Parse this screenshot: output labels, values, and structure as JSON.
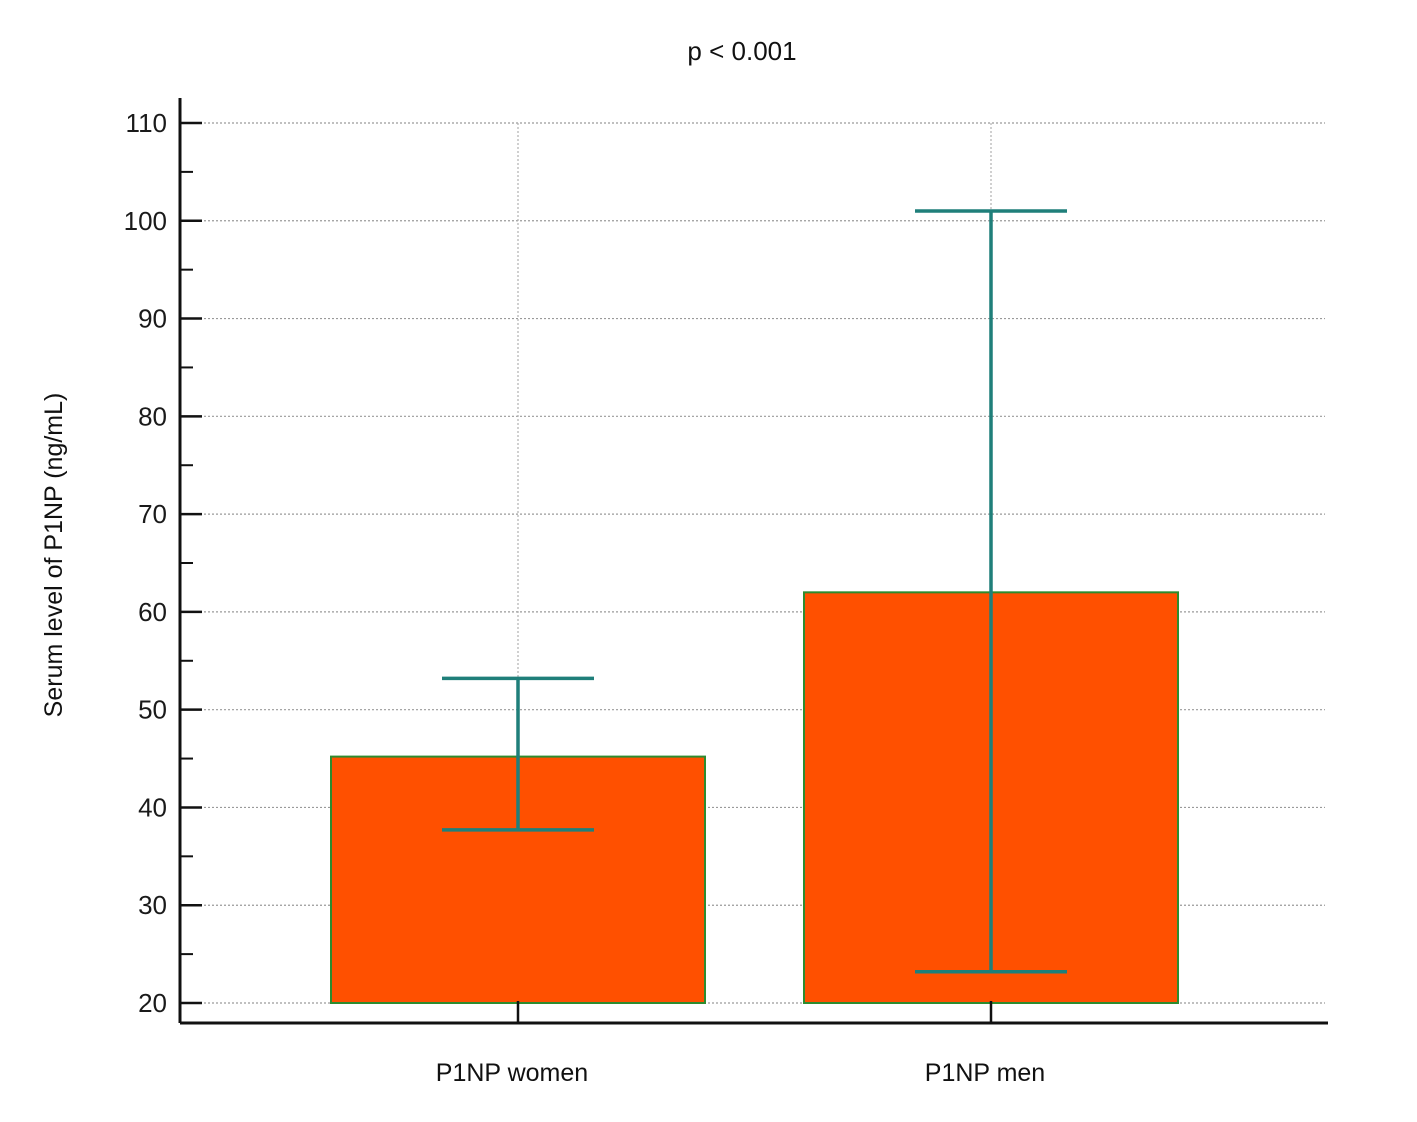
{
  "chart_data": {
    "type": "bar",
    "title": "p < 0.001",
    "xlabel": "",
    "ylabel": "Serum level of P1NP (ng/mL)",
    "categories": [
      "P1NP women",
      "P1NP men"
    ],
    "values": [
      45.2,
      62.0
    ],
    "error_low": [
      37.7,
      23.2
    ],
    "error_high": [
      53.2,
      101.0
    ],
    "ylim": [
      20,
      110
    ],
    "yticks": [
      20,
      30,
      40,
      50,
      60,
      70,
      80,
      90,
      100,
      110
    ],
    "grid": true,
    "legend": "none",
    "bar_color": "#ff5000",
    "bar_edge_color": "#2e8b2e",
    "error_color": "#1f7f7a"
  }
}
